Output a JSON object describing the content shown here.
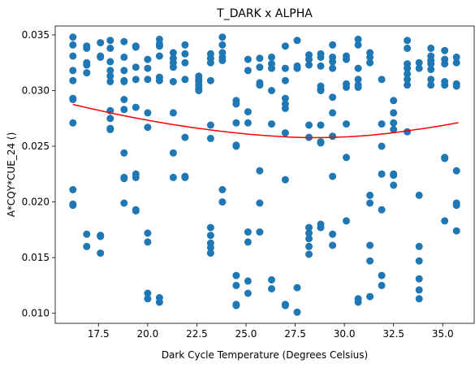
{
  "chart_data": {
    "type": "scatter",
    "title": "T_DARK x ALPHA",
    "xlabel": "Dark Cycle Temperature (Degrees Celsius)",
    "ylabel": "A*CQY*CUE_24 ()",
    "xlim": [
      15.3,
      36.6
    ],
    "ylim": [
      0.0091,
      0.0358
    ],
    "xticks": [
      17.5,
      20.0,
      22.5,
      25.0,
      27.5,
      30.0,
      32.5,
      35.0
    ],
    "xtick_labels": [
      "17.5",
      "20.0",
      "22.5",
      "25.0",
      "27.5",
      "30.0",
      "32.5",
      "35.0"
    ],
    "yticks": [
      0.01,
      0.015,
      0.02,
      0.025,
      0.03,
      0.035
    ],
    "ytick_labels": [
      "0.010",
      "0.015",
      "0.020",
      "0.025",
      "0.030",
      "0.035"
    ],
    "grid": false,
    "legend": "none",
    "colors": {
      "points": "#1f77b4",
      "trend": "#ff0000"
    },
    "scatter_points": [
      [
        16.2,
        0.0348
      ],
      [
        16.2,
        0.0341
      ],
      [
        16.2,
        0.0331
      ],
      [
        16.2,
        0.0318
      ],
      [
        16.2,
        0.0309
      ],
      [
        16.2,
        0.0292
      ],
      [
        16.2,
        0.0293
      ],
      [
        16.2,
        0.0271
      ],
      [
        16.2,
        0.0211
      ],
      [
        16.2,
        0.0198
      ],
      [
        16.2,
        0.0197
      ],
      [
        16.9,
        0.034
      ],
      [
        16.9,
        0.0338
      ],
      [
        16.9,
        0.0325
      ],
      [
        16.9,
        0.0323
      ],
      [
        16.9,
        0.0316
      ],
      [
        16.9,
        0.0171
      ],
      [
        16.9,
        0.016
      ],
      [
        17.6,
        0.0343
      ],
      [
        17.6,
        0.033
      ],
      [
        17.6,
        0.0331
      ],
      [
        17.6,
        0.017
      ],
      [
        17.6,
        0.0169
      ],
      [
        17.6,
        0.0154
      ],
      [
        18.1,
        0.0345
      ],
      [
        18.1,
        0.0338
      ],
      [
        18.1,
        0.0326
      ],
      [
        18.1,
        0.0318
      ],
      [
        18.1,
        0.0313
      ],
      [
        18.1,
        0.0308
      ],
      [
        18.1,
        0.0282
      ],
      [
        18.1,
        0.0275
      ],
      [
        18.1,
        0.0266
      ],
      [
        18.1,
        0.0265
      ],
      [
        18.8,
        0.0344
      ],
      [
        18.8,
        0.033
      ],
      [
        18.8,
        0.0318
      ],
      [
        18.8,
        0.0309
      ],
      [
        18.8,
        0.0308
      ],
      [
        18.8,
        0.0292
      ],
      [
        18.8,
        0.0283
      ],
      [
        18.8,
        0.0244
      ],
      [
        18.8,
        0.0222
      ],
      [
        18.8,
        0.0221
      ],
      [
        18.8,
        0.0199
      ],
      [
        19.4,
        0.034
      ],
      [
        19.4,
        0.0339
      ],
      [
        19.4,
        0.0321
      ],
      [
        19.4,
        0.031
      ],
      [
        19.4,
        0.0285
      ],
      [
        19.4,
        0.0225
      ],
      [
        19.4,
        0.0222
      ],
      [
        19.4,
        0.0193
      ],
      [
        19.4,
        0.0192
      ],
      [
        20.0,
        0.0328
      ],
      [
        20.0,
        0.032
      ],
      [
        20.0,
        0.031
      ],
      [
        20.0,
        0.028
      ],
      [
        20.0,
        0.0267
      ],
      [
        20.0,
        0.0172
      ],
      [
        20.0,
        0.0164
      ],
      [
        20.0,
        0.0118
      ],
      [
        20.0,
        0.0113
      ],
      [
        20.6,
        0.0346
      ],
      [
        20.6,
        0.0342
      ],
      [
        20.6,
        0.034
      ],
      [
        20.6,
        0.0331
      ],
      [
        20.6,
        0.0312
      ],
      [
        20.6,
        0.0309
      ],
      [
        20.6,
        0.0114
      ],
      [
        20.6,
        0.011
      ],
      [
        21.3,
        0.0334
      ],
      [
        21.3,
        0.0329
      ],
      [
        21.3,
        0.0325
      ],
      [
        21.3,
        0.0321
      ],
      [
        21.3,
        0.0308
      ],
      [
        21.3,
        0.028
      ],
      [
        21.3,
        0.0244
      ],
      [
        21.3,
        0.0222
      ],
      [
        21.9,
        0.0341
      ],
      [
        21.9,
        0.0333
      ],
      [
        21.9,
        0.0325
      ],
      [
        21.9,
        0.031
      ],
      [
        21.9,
        0.0258
      ],
      [
        21.9,
        0.0223
      ],
      [
        21.9,
        0.0222
      ],
      [
        22.6,
        0.0313
      ],
      [
        22.6,
        0.031
      ],
      [
        22.6,
        0.0308
      ],
      [
        22.6,
        0.0305
      ],
      [
        22.6,
        0.0302
      ],
      [
        22.6,
        0.03
      ],
      [
        23.2,
        0.0333
      ],
      [
        23.2,
        0.0329
      ],
      [
        23.2,
        0.0325
      ],
      [
        23.2,
        0.0309
      ],
      [
        23.2,
        0.0269
      ],
      [
        23.2,
        0.0257
      ],
      [
        23.2,
        0.0177
      ],
      [
        23.2,
        0.017
      ],
      [
        23.2,
        0.0163
      ],
      [
        23.2,
        0.0159
      ],
      [
        23.2,
        0.0154
      ],
      [
        23.8,
        0.0348
      ],
      [
        23.8,
        0.0341
      ],
      [
        23.8,
        0.0334
      ],
      [
        23.8,
        0.033
      ],
      [
        23.8,
        0.0327
      ],
      [
        23.8,
        0.0211
      ],
      [
        23.8,
        0.02
      ],
      [
        24.5,
        0.0291
      ],
      [
        24.5,
        0.0288
      ],
      [
        24.5,
        0.0271
      ],
      [
        24.5,
        0.0251
      ],
      [
        24.5,
        0.025
      ],
      [
        24.5,
        0.0134
      ],
      [
        24.5,
        0.0125
      ],
      [
        24.5,
        0.0108
      ],
      [
        24.5,
        0.0107
      ],
      [
        25.1,
        0.0328
      ],
      [
        25.1,
        0.0318
      ],
      [
        25.1,
        0.0281
      ],
      [
        25.1,
        0.0271
      ],
      [
        25.1,
        0.0173
      ],
      [
        25.1,
        0.0164
      ],
      [
        25.1,
        0.0129
      ],
      [
        25.1,
        0.0118
      ],
      [
        25.7,
        0.0329
      ],
      [
        25.7,
        0.0321
      ],
      [
        25.7,
        0.0307
      ],
      [
        25.7,
        0.0305
      ],
      [
        25.7,
        0.0228
      ],
      [
        25.7,
        0.0199
      ],
      [
        25.7,
        0.0173
      ],
      [
        26.3,
        0.033
      ],
      [
        26.3,
        0.0324
      ],
      [
        26.3,
        0.032
      ],
      [
        26.3,
        0.03
      ],
      [
        26.3,
        0.027
      ],
      [
        26.3,
        0.013
      ],
      [
        26.3,
        0.0122
      ],
      [
        27.0,
        0.034
      ],
      [
        27.0,
        0.032
      ],
      [
        27.0,
        0.0309
      ],
      [
        27.0,
        0.0293
      ],
      [
        27.0,
        0.0288
      ],
      [
        27.0,
        0.0284
      ],
      [
        27.0,
        0.0262
      ],
      [
        27.0,
        0.022
      ],
      [
        27.0,
        0.0108
      ],
      [
        27.0,
        0.0107
      ],
      [
        27.6,
        0.0345
      ],
      [
        27.6,
        0.0322
      ],
      [
        27.6,
        0.032
      ],
      [
        27.6,
        0.0123
      ],
      [
        27.6,
        0.0101
      ],
      [
        28.2,
        0.0332
      ],
      [
        28.2,
        0.0328
      ],
      [
        28.2,
        0.0323
      ],
      [
        28.2,
        0.0269
      ],
      [
        28.2,
        0.0258
      ],
      [
        28.2,
        0.0177
      ],
      [
        28.2,
        0.0172
      ],
      [
        28.2,
        0.0167
      ],
      [
        28.2,
        0.016
      ],
      [
        28.2,
        0.0153
      ],
      [
        28.8,
        0.0333
      ],
      [
        28.8,
        0.033
      ],
      [
        28.8,
        0.0322
      ],
      [
        28.8,
        0.0304
      ],
      [
        28.8,
        0.0301
      ],
      [
        28.8,
        0.03
      ],
      [
        28.8,
        0.0269
      ],
      [
        28.8,
        0.0254
      ],
      [
        28.8,
        0.0253
      ],
      [
        28.8,
        0.018
      ],
      [
        28.8,
        0.0177
      ],
      [
        29.4,
        0.0341
      ],
      [
        29.4,
        0.033
      ],
      [
        29.4,
        0.0326
      ],
      [
        29.4,
        0.032
      ],
      [
        29.4,
        0.0294
      ],
      [
        29.4,
        0.028
      ],
      [
        29.4,
        0.0259
      ],
      [
        29.4,
        0.0223
      ],
      [
        29.4,
        0.0171
      ],
      [
        29.4,
        0.0161
      ],
      [
        30.1,
        0.0331
      ],
      [
        30.1,
        0.0328
      ],
      [
        30.1,
        0.0306
      ],
      [
        30.1,
        0.0303
      ],
      [
        30.1,
        0.027
      ],
      [
        30.1,
        0.024
      ],
      [
        30.1,
        0.0183
      ],
      [
        30.7,
        0.0346
      ],
      [
        30.7,
        0.0341
      ],
      [
        30.7,
        0.032
      ],
      [
        30.7,
        0.031
      ],
      [
        30.7,
        0.0305
      ],
      [
        30.7,
        0.0303
      ],
      [
        30.7,
        0.0113
      ],
      [
        30.7,
        0.011
      ],
      [
        31.3,
        0.0334
      ],
      [
        31.3,
        0.033
      ],
      [
        31.3,
        0.0325
      ],
      [
        31.3,
        0.0206
      ],
      [
        31.3,
        0.0199
      ],
      [
        31.3,
        0.0161
      ],
      [
        31.3,
        0.0147
      ],
      [
        31.3,
        0.0115
      ],
      [
        31.9,
        0.031
      ],
      [
        31.9,
        0.027
      ],
      [
        31.9,
        0.025
      ],
      [
        31.9,
        0.0225
      ],
      [
        31.9,
        0.0193
      ],
      [
        31.9,
        0.0134
      ],
      [
        31.9,
        0.0125
      ],
      [
        32.5,
        0.0291
      ],
      [
        32.5,
        0.028
      ],
      [
        32.5,
        0.0271
      ],
      [
        32.5,
        0.0265
      ],
      [
        32.5,
        0.0225
      ],
      [
        32.5,
        0.0224
      ],
      [
        32.5,
        0.0215
      ],
      [
        33.2,
        0.0345
      ],
      [
        33.2,
        0.0338
      ],
      [
        33.2,
        0.0324
      ],
      [
        33.2,
        0.032
      ],
      [
        33.2,
        0.0315
      ],
      [
        33.2,
        0.031
      ],
      [
        33.2,
        0.0305
      ],
      [
        33.2,
        0.0263
      ],
      [
        33.8,
        0.0325
      ],
      [
        33.8,
        0.032
      ],
      [
        33.8,
        0.0206
      ],
      [
        33.8,
        0.016
      ],
      [
        33.8,
        0.0147
      ],
      [
        33.8,
        0.0131
      ],
      [
        33.8,
        0.0121
      ],
      [
        33.8,
        0.0113
      ],
      [
        34.4,
        0.0338
      ],
      [
        34.4,
        0.0331
      ],
      [
        34.4,
        0.0327
      ],
      [
        34.4,
        0.0324
      ],
      [
        34.4,
        0.0319
      ],
      [
        34.4,
        0.031
      ],
      [
        34.4,
        0.0305
      ],
      [
        35.1,
        0.0336
      ],
      [
        35.1,
        0.0328
      ],
      [
        35.1,
        0.0324
      ],
      [
        35.1,
        0.0308
      ],
      [
        35.1,
        0.0305
      ],
      [
        35.1,
        0.024
      ],
      [
        35.1,
        0.0239
      ],
      [
        35.1,
        0.0183
      ],
      [
        35.7,
        0.033
      ],
      [
        35.7,
        0.0325
      ],
      [
        35.7,
        0.0306
      ],
      [
        35.7,
        0.0304
      ],
      [
        35.7,
        0.0228
      ],
      [
        35.7,
        0.0199
      ],
      [
        35.7,
        0.0197
      ],
      [
        35.7,
        0.0174
      ]
    ],
    "trend_line": {
      "x": [
        16.2,
        17.2,
        18.2,
        19.2,
        20.2,
        21.2,
        22.2,
        23.2,
        24.2,
        25.2,
        26.2,
        27.2,
        28.2,
        29.2,
        30.2,
        31.2,
        32.2,
        33.2,
        34.2,
        35.2,
        35.8
      ],
      "y": [
        0.02875,
        0.02835,
        0.02796,
        0.0276,
        0.02727,
        0.02697,
        0.0267,
        0.02646,
        0.02625,
        0.02607,
        0.02593,
        0.02582,
        0.02577,
        0.02579,
        0.02585,
        0.02597,
        0.02615,
        0.02638,
        0.02664,
        0.02693,
        0.02712
      ]
    }
  }
}
